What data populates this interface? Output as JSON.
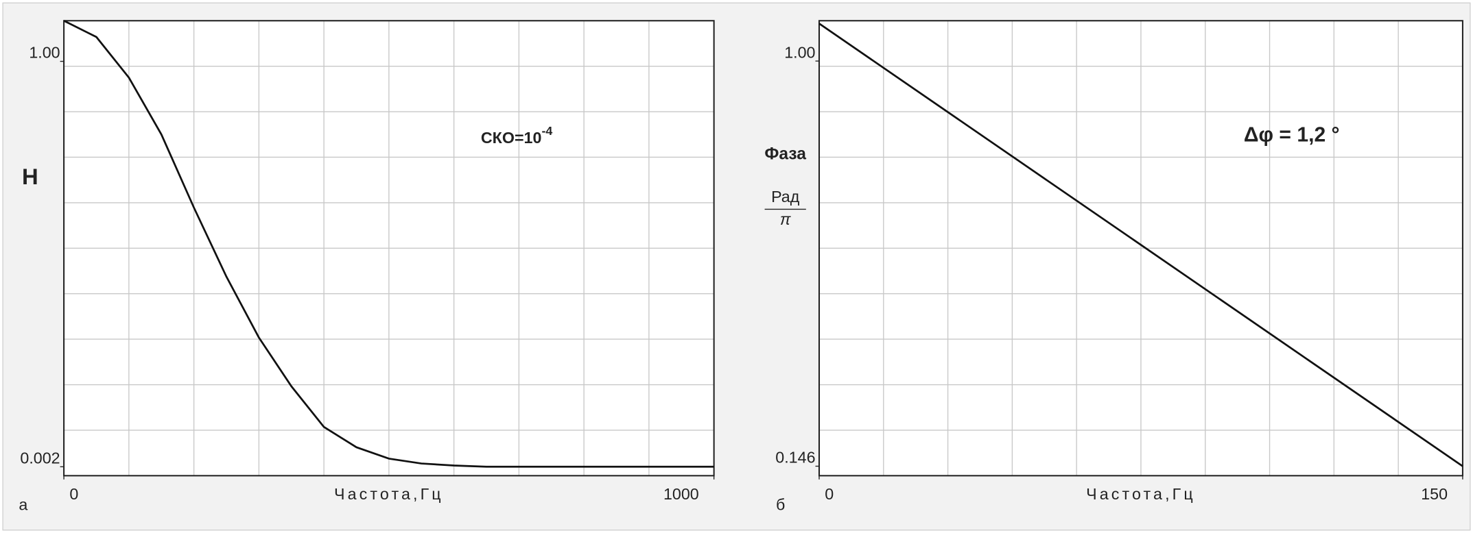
{
  "chart_data": [
    {
      "type": "line",
      "panel_label": "а",
      "y_label": "H",
      "x_label": "Частота,Гц",
      "annotation": {
        "text": "СКО=10",
        "superscript": "-4"
      },
      "x": [
        0,
        50,
        100,
        150,
        200,
        250,
        300,
        350,
        400,
        450,
        500,
        550,
        600,
        650,
        700,
        750,
        800,
        850,
        900,
        950,
        1000
      ],
      "values": [
        1.1,
        1.06,
        0.96,
        0.82,
        0.64,
        0.47,
        0.32,
        0.2,
        0.1,
        0.05,
        0.022,
        0.01,
        0.005,
        0.002,
        0.002,
        0.002,
        0.002,
        0.002,
        0.002,
        0.002,
        0.002
      ],
      "color": "#111",
      "xlim": [
        0,
        1000
      ],
      "xticks": [
        0,
        1000
      ],
      "ylim": [
        -0.02,
        1.1
      ],
      "yticks": [
        {
          "value": 1,
          "label": "1.00"
        },
        0.002
      ],
      "grid": true
    },
    {
      "type": "line",
      "panel_label": "б",
      "y_label": "Фаза",
      "y_unit": {
        "numerator": "Рад",
        "denominator": "π"
      },
      "x_label": "Частота,Гц",
      "annotation": {
        "text": "Δφ = 1,2 °"
      },
      "x": [
        0,
        150
      ],
      "values": [
        1.079,
        0.146
      ],
      "color": "#111",
      "xlim": [
        0,
        150
      ],
      "xticks": [
        0,
        150
      ],
      "ylim": [
        0.126,
        1.085
      ],
      "yticks": [
        {
          "value": 1,
          "label": "1.00"
        },
        0.146
      ],
      "grid": true
    }
  ]
}
